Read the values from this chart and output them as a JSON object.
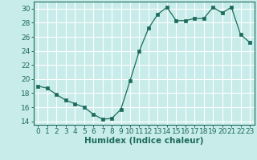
{
  "x": [
    0,
    1,
    2,
    3,
    4,
    5,
    6,
    7,
    8,
    9,
    10,
    11,
    12,
    13,
    14,
    15,
    16,
    17,
    18,
    19,
    20,
    21,
    22,
    23
  ],
  "y": [
    19.0,
    18.7,
    17.8,
    17.0,
    16.5,
    16.0,
    15.0,
    14.3,
    14.4,
    15.7,
    19.8,
    24.0,
    27.2,
    29.2,
    30.2,
    28.3,
    28.3,
    28.6,
    28.6,
    30.2,
    29.4,
    30.2,
    26.3,
    25.2
  ],
  "xlabel": "Humidex (Indice chaleur)",
  "xlim": [
    -0.5,
    23.5
  ],
  "ylim": [
    13.5,
    31.0
  ],
  "yticks": [
    14,
    16,
    18,
    20,
    22,
    24,
    26,
    28,
    30
  ],
  "xticks": [
    0,
    1,
    2,
    3,
    4,
    5,
    6,
    7,
    8,
    9,
    10,
    11,
    12,
    13,
    14,
    15,
    16,
    17,
    18,
    19,
    20,
    21,
    22,
    23
  ],
  "bg_color": "#c8ecea",
  "line_color": "#1e6b5e",
  "marker_color": "#1e6b5e",
  "grid_color": "#ffffff",
  "tick_fontsize": 6.5,
  "label_fontsize": 7.5
}
